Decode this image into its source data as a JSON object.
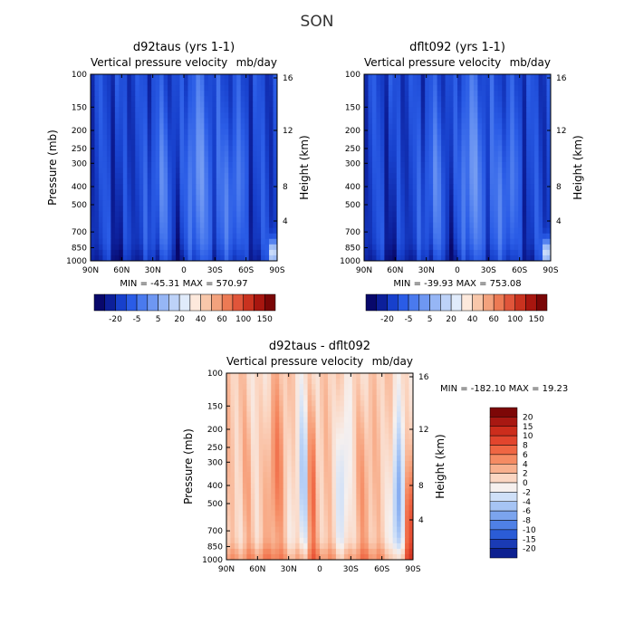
{
  "figure": {
    "title": "SON"
  },
  "chart_data": [
    {
      "type": "heatmap",
      "title": "d92taus (yrs 1-1)",
      "subtitle_left": "Vertical pressure velocity",
      "subtitle_right": "mb/day",
      "xlabel": "",
      "ylabel": "Pressure (mb)",
      "y2label": "Height (km)",
      "x_ticks": [
        "90N",
        "60N",
        "30N",
        "0",
        "30S",
        "60S",
        "90S"
      ],
      "y_ticks": [
        "100",
        "150",
        "200",
        "250",
        "300",
        "400",
        "500",
        "700",
        "850",
        "1000"
      ],
      "y2_ticks": [
        "16",
        "12",
        "8",
        "4"
      ],
      "yscale": "log",
      "ylim": [
        1000,
        100
      ],
      "xlim": [
        90,
        -90
      ],
      "stats": "MIN = -45.31   MAX = 570.97",
      "colorbar": {
        "orientation": "horizontal",
        "labels": [
          "-20",
          "-5",
          "5",
          "20",
          "40",
          "60",
          "100",
          "150"
        ],
        "colors": [
          "#08086b",
          "#0c1f9a",
          "#1740cc",
          "#2a5ce6",
          "#4a7aee",
          "#6e97f2",
          "#96b6f5",
          "#bdd2f8",
          "#e0ebfb",
          "#fde9dc",
          "#f8c7aa",
          "#f3a27d",
          "#ec7a54",
          "#e0553a",
          "#c9321f",
          "#a8160f",
          "#7a0606"
        ]
      }
    },
    {
      "type": "heatmap",
      "title": "dflt092 (yrs 1-1)",
      "subtitle_left": "Vertical pressure velocity",
      "subtitle_right": "mb/day",
      "xlabel": "",
      "ylabel": "",
      "y2label": "Height (km)",
      "x_ticks": [
        "90N",
        "60N",
        "30N",
        "0",
        "30S",
        "60S",
        "90S"
      ],
      "y_ticks": [
        "100",
        "150",
        "200",
        "250",
        "300",
        "400",
        "500",
        "700",
        "850",
        "1000"
      ],
      "y2_ticks": [
        "16",
        "12",
        "8",
        "4"
      ],
      "yscale": "log",
      "ylim": [
        1000,
        100
      ],
      "xlim": [
        90,
        -90
      ],
      "stats": "MIN = -39.93   MAX = 753.08",
      "colorbar": {
        "orientation": "horizontal",
        "labels": [
          "-20",
          "-5",
          "5",
          "20",
          "40",
          "60",
          "100",
          "150"
        ],
        "colors": [
          "#08086b",
          "#0c1f9a",
          "#1740cc",
          "#2a5ce6",
          "#4a7aee",
          "#6e97f2",
          "#96b6f5",
          "#bdd2f8",
          "#e0ebfb",
          "#fde9dc",
          "#f8c7aa",
          "#f3a27d",
          "#ec7a54",
          "#e0553a",
          "#c9321f",
          "#a8160f",
          "#7a0606"
        ]
      }
    },
    {
      "type": "heatmap",
      "title": "d92taus - dflt092",
      "subtitle_left": "Vertical pressure velocity",
      "subtitle_right": "mb/day",
      "xlabel": "",
      "ylabel": "Pressure (mb)",
      "y2label": "Height (km)",
      "x_ticks": [
        "90N",
        "60N",
        "30N",
        "0",
        "30S",
        "60S",
        "90S"
      ],
      "y_ticks": [
        "100",
        "150",
        "200",
        "250",
        "300",
        "400",
        "500",
        "700",
        "850",
        "1000"
      ],
      "y2_ticks": [
        "16",
        "12",
        "8",
        "4"
      ],
      "yscale": "log",
      "ylim": [
        1000,
        100
      ],
      "xlim": [
        90,
        -90
      ],
      "stats": "MIN = -182.10   MAX =  19.23",
      "colorbar": {
        "orientation": "vertical",
        "labels": [
          "20",
          "15",
          "10",
          "8",
          "6",
          "4",
          "2",
          "0",
          "-2",
          "-4",
          "-6",
          "-8",
          "-10",
          "-15",
          "-20"
        ],
        "colors": [
          "#7d0707",
          "#a81812",
          "#cc2d1c",
          "#e2452d",
          "#ef6643",
          "#f58b63",
          "#f8b08e",
          "#fbd6c2",
          "#f6f0ee",
          "#cfe0f8",
          "#a6c4f4",
          "#7ba4ee",
          "#4f80e6",
          "#2b5cd6",
          "#1a3bb5",
          "#0c2090"
        ]
      }
    }
  ]
}
